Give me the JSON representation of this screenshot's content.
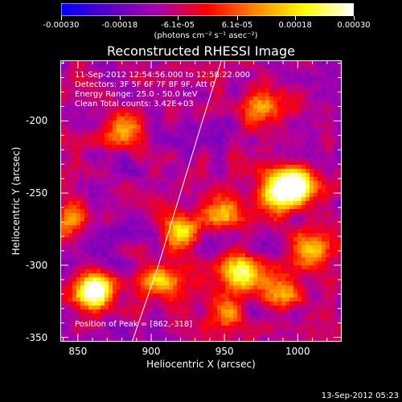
{
  "colorbar": {
    "min": -0.0003,
    "max": 0.0003,
    "tick_values": [
      -0.0003,
      -0.00018,
      -6.1e-05,
      6.1e-05,
      0.00018,
      0.0003
    ],
    "tick_labels": [
      "-0.00030",
      "-0.00018",
      "-6.1e-05",
      "6.1e-05",
      "0.00018",
      "0.00030"
    ],
    "unit": "(photons cm⁻² s⁻¹ asec⁻²)",
    "colors": [
      "#0000ff",
      "#5a00c8",
      "#aa00aa",
      "#ff0000",
      "#ff8800",
      "#ffff00",
      "#ffffff"
    ]
  },
  "chart_data": {
    "type": "heatmap",
    "title": "Reconstructed RHESSI Image",
    "xlabel": "Heliocentric X (arcsec)",
    "ylabel": "Heliocentric Y (arcsec)",
    "xlim": [
      838,
      1030
    ],
    "ylim": [
      -353,
      -158
    ],
    "x_ticks": [
      850,
      900,
      950,
      1000
    ],
    "y_ticks": [
      -350,
      -300,
      -250,
      -200
    ],
    "x_tick_labels": [
      "850",
      "900",
      "950",
      "1000"
    ],
    "y_tick_labels": [
      "-350",
      "-300",
      "-250",
      "-200"
    ],
    "grid_size": 70,
    "bright_sources": [
      {
        "x": 862,
        "y": -318,
        "intensity": 1.0
      },
      {
        "x": 1000,
        "y": -245,
        "intensity": 0.85
      },
      {
        "x": 985,
        "y": -250,
        "intensity": 0.7
      },
      {
        "x": 960,
        "y": -305,
        "intensity": 0.75
      },
      {
        "x": 975,
        "y": -190,
        "intensity": 0.5
      },
      {
        "x": 920,
        "y": -275,
        "intensity": 0.6
      },
      {
        "x": 905,
        "y": -310,
        "intensity": 0.55
      },
      {
        "x": 948,
        "y": -262,
        "intensity": 0.5
      },
      {
        "x": 990,
        "y": -318,
        "intensity": 0.5
      },
      {
        "x": 880,
        "y": -205,
        "intensity": 0.4
      },
      {
        "x": 845,
        "y": -268,
        "intensity": 0.5
      },
      {
        "x": 1010,
        "y": -290,
        "intensity": 0.55
      },
      {
        "x": 950,
        "y": -335,
        "intensity": 0.45
      }
    ],
    "limb_line": [
      {
        "x": 887,
        "y": -353
      },
      {
        "x": 905,
        "y": -300
      },
      {
        "x": 920,
        "y": -250
      },
      {
        "x": 935,
        "y": -200
      },
      {
        "x": 948,
        "y": -158
      }
    ],
    "annotations": [
      "11-Sep-2012 12:54:56.000 to 12:58:22.000",
      "Detectors: 3F 5F 6F 7F 8F 9F, Att 0",
      "Energy Range: 25.0 - 50.0 keV",
      "Clean     Total counts: 3.42E+03"
    ],
    "peak_label": "Position of Peak = [862,-318]"
  },
  "timestamp": "13-Sep-2012 05:23"
}
